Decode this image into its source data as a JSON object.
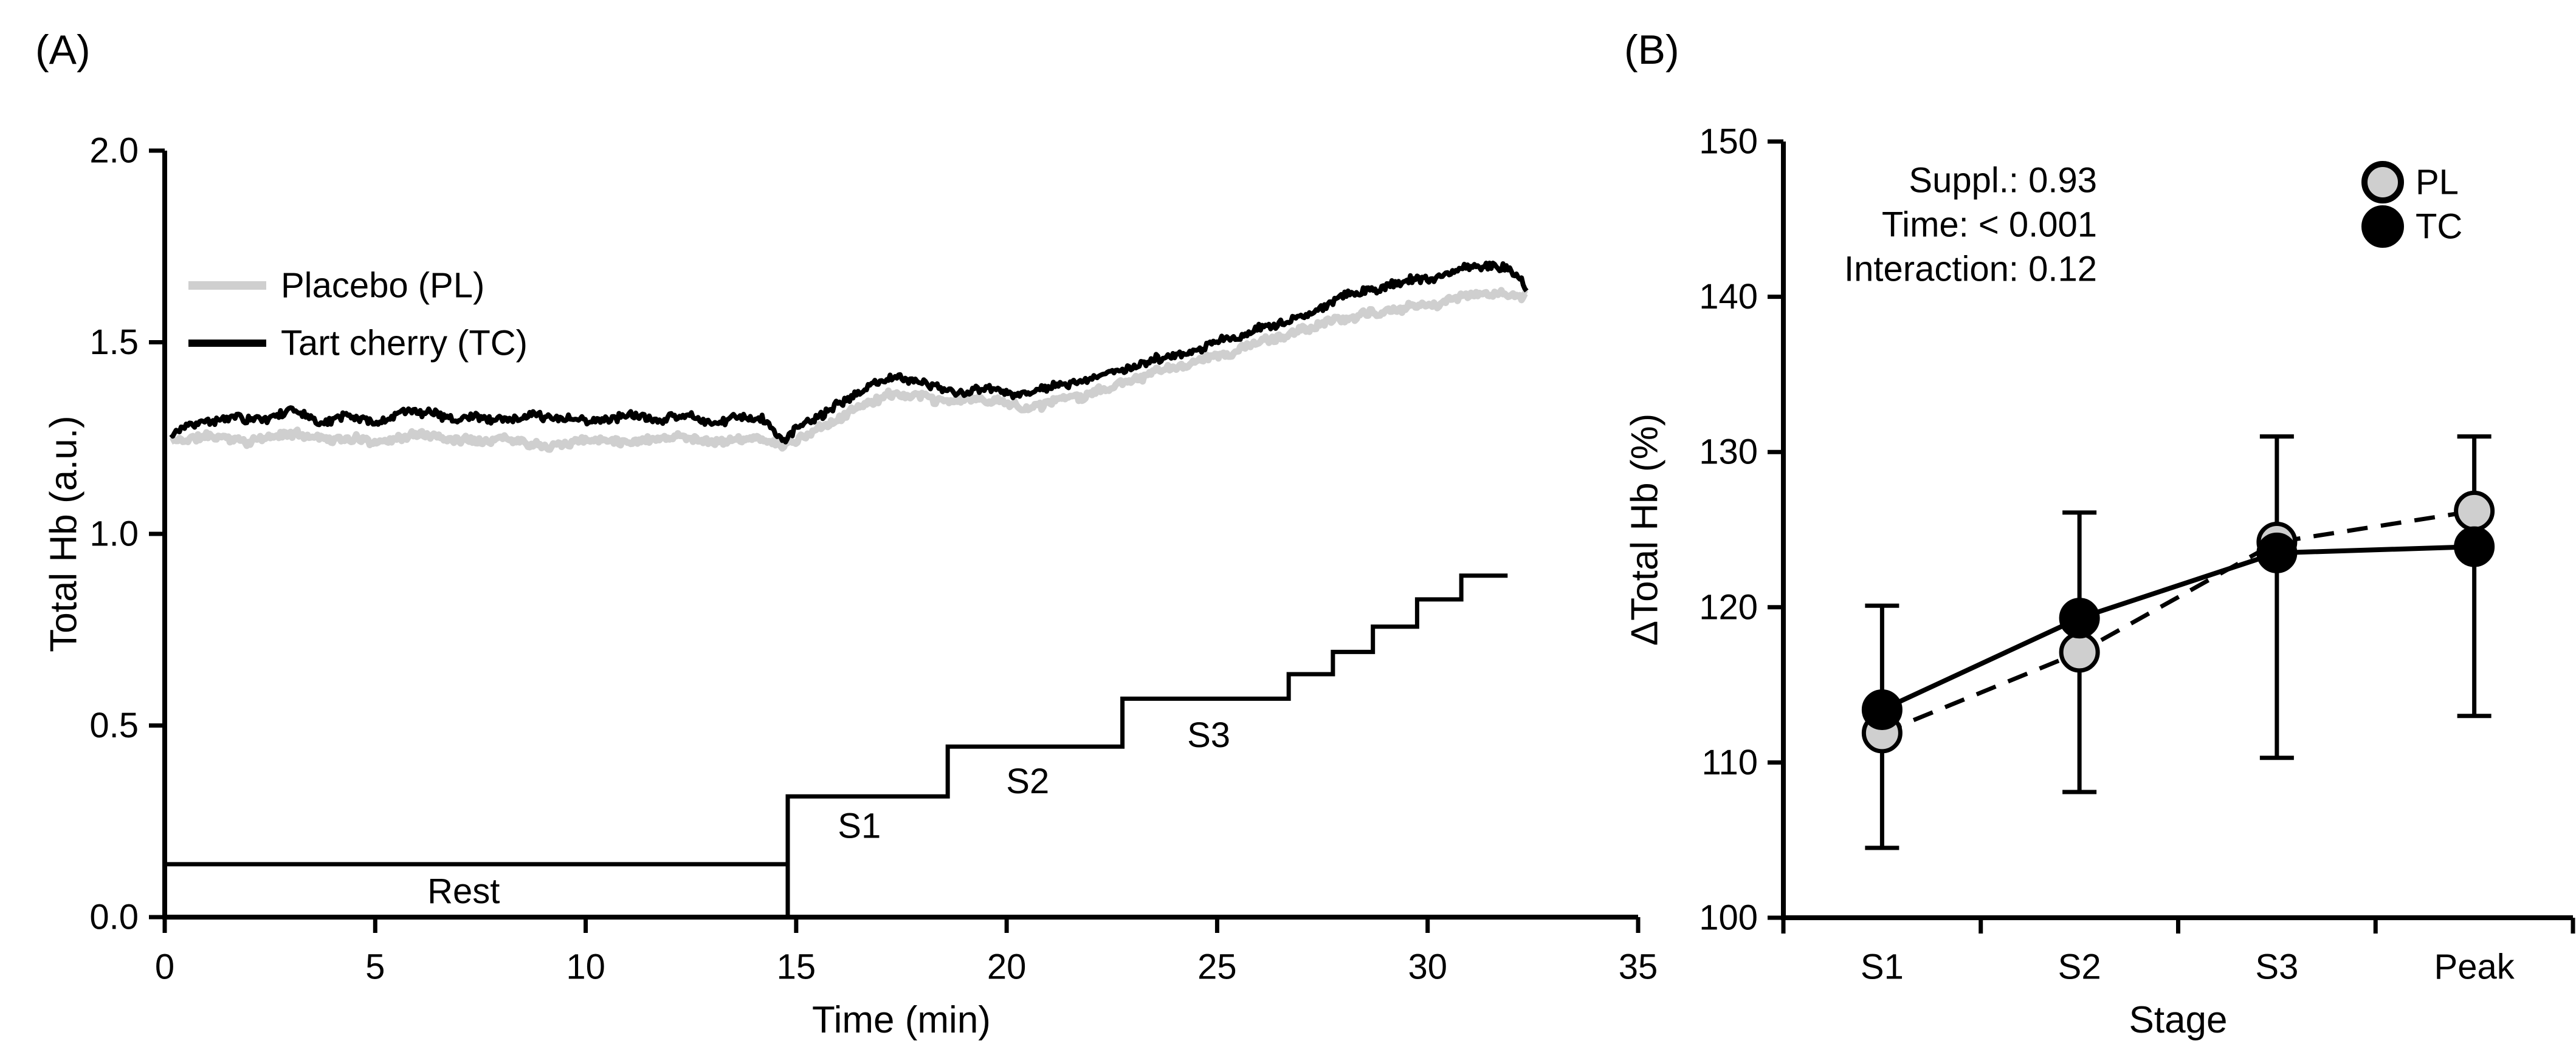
{
  "figure": {
    "background": "#ffffff",
    "panel_a": {
      "label": "(A)",
      "xlabel": "Time (min)",
      "ylabel": "Total Hb (a.u.)",
      "xlim": [
        0,
        35
      ],
      "ylim": [
        0.0,
        2.0
      ],
      "xticks": [
        {
          "v": 0,
          "label": "0"
        },
        {
          "v": 5,
          "label": "5"
        },
        {
          "v": 10,
          "label": "10"
        },
        {
          "v": 15,
          "label": "15"
        },
        {
          "v": 20,
          "label": "20"
        },
        {
          "v": 25,
          "label": "25"
        },
        {
          "v": 30,
          "label": "30"
        },
        {
          "v": 35,
          "label": "35"
        }
      ],
      "yticks": [
        {
          "v": 0.0,
          "label": "0.0"
        },
        {
          "v": 0.5,
          "label": "0.5"
        },
        {
          "v": 1.0,
          "label": "1.0"
        },
        {
          "v": 1.5,
          "label": "1.5"
        },
        {
          "v": 2.0,
          "label": "2.0"
        }
      ],
      "legend": [
        {
          "name": "Placebo (PL)",
          "color": "#cfcfcf",
          "swatch_width": 14
        },
        {
          "name": "Tart cherry (TC)",
          "color": "#000000",
          "swatch_width": 12
        }
      ],
      "chart_data": {
        "type": "line",
        "x_unit": "min",
        "series": [
          {
            "name": "Placebo (PL)",
            "color": "#cfcfcf",
            "stroke_width": 11,
            "noise_amp": 0.015,
            "noise_seed": 11,
            "waypoints": [
              [
                0.15,
                1.24
              ],
              [
                1,
                1.255
              ],
              [
                2,
                1.245
              ],
              [
                3,
                1.26
              ],
              [
                4,
                1.25
              ],
              [
                5,
                1.245
              ],
              [
                6,
                1.26
              ],
              [
                7,
                1.25
              ],
              [
                8,
                1.255
              ],
              [
                9,
                1.24
              ],
              [
                10,
                1.25
              ],
              [
                11,
                1.245
              ],
              [
                12,
                1.26
              ],
              [
                13,
                1.245
              ],
              [
                14,
                1.25
              ],
              [
                14.6,
                1.23
              ],
              [
                15.2,
                1.25
              ],
              [
                16,
                1.3
              ],
              [
                16.6,
                1.34
              ],
              [
                17.2,
                1.36
              ],
              [
                18,
                1.35
              ],
              [
                18.6,
                1.34
              ],
              [
                19.2,
                1.35
              ],
              [
                20,
                1.34
              ],
              [
                20.6,
                1.33
              ],
              [
                21.2,
                1.35
              ],
              [
                22,
                1.37
              ],
              [
                23,
                1.4
              ],
              [
                24,
                1.43
              ],
              [
                25,
                1.46
              ],
              [
                26,
                1.5
              ],
              [
                26.8,
                1.52
              ],
              [
                27.6,
                1.55
              ],
              [
                28.4,
                1.57
              ],
              [
                29.2,
                1.58
              ],
              [
                30,
                1.6
              ],
              [
                30.8,
                1.62
              ],
              [
                31.6,
                1.63
              ],
              [
                32.1,
                1.63
              ],
              [
                32.35,
                1.62
              ]
            ]
          },
          {
            "name": "Tart cherry (TC)",
            "color": "#000000",
            "stroke_width": 8,
            "noise_amp": 0.017,
            "noise_seed": 4,
            "waypoints": [
              [
                0.15,
                1.26
              ],
              [
                0.8,
                1.29
              ],
              [
                1.6,
                1.3
              ],
              [
                2.4,
                1.29
              ],
              [
                3,
                1.32
              ],
              [
                3.6,
                1.29
              ],
              [
                4.4,
                1.3
              ],
              [
                5,
                1.28
              ],
              [
                5.8,
                1.31
              ],
              [
                6.6,
                1.3
              ],
              [
                7.4,
                1.31
              ],
              [
                8,
                1.29
              ],
              [
                8.8,
                1.3
              ],
              [
                9.6,
                1.31
              ],
              [
                10.4,
                1.29
              ],
              [
                11,
                1.31
              ],
              [
                11.8,
                1.3
              ],
              [
                12.4,
                1.31
              ],
              [
                13,
                1.28
              ],
              [
                13.6,
                1.31
              ],
              [
                14.2,
                1.3
              ],
              [
                14.7,
                1.25
              ],
              [
                15.1,
                1.29
              ],
              [
                15.6,
                1.31
              ],
              [
                16.2,
                1.35
              ],
              [
                16.8,
                1.39
              ],
              [
                17.4,
                1.41
              ],
              [
                18,
                1.39
              ],
              [
                18.8,
                1.37
              ],
              [
                19.4,
                1.38
              ],
              [
                20,
                1.37
              ],
              [
                20.6,
                1.36
              ],
              [
                21.2,
                1.38
              ],
              [
                22,
                1.4
              ],
              [
                23,
                1.43
              ],
              [
                24,
                1.46
              ],
              [
                25,
                1.5
              ],
              [
                26,
                1.54
              ],
              [
                26.8,
                1.57
              ],
              [
                27.6,
                1.6
              ],
              [
                28.4,
                1.63
              ],
              [
                29.2,
                1.65
              ],
              [
                30,
                1.67
              ],
              [
                30.8,
                1.7
              ],
              [
                31.4,
                1.7
              ],
              [
                31.9,
                1.69
              ],
              [
                32.2,
                1.67
              ],
              [
                32.35,
                1.64
              ]
            ]
          }
        ],
        "protocol_steps": {
          "color": "#000000",
          "stroke_width": 7,
          "riser_t": 14.8,
          "segments": [
            {
              "t0": 0.0,
              "t1": 14.8,
              "level": 0.138
            },
            {
              "t0": 14.8,
              "t1": 18.6,
              "level": 0.315
            },
            {
              "t0": 18.6,
              "t1": 22.75,
              "level": 0.445
            },
            {
              "t0": 22.75,
              "t1": 26.7,
              "level": 0.57
            },
            {
              "t0": 26.7,
              "t1": 27.75,
              "level": 0.634
            },
            {
              "t0": 27.75,
              "t1": 28.7,
              "level": 0.692
            },
            {
              "t0": 28.7,
              "t1": 29.75,
              "level": 0.758
            },
            {
              "t0": 29.75,
              "t1": 30.8,
              "level": 0.829
            },
            {
              "t0": 30.8,
              "t1": 31.9,
              "level": 0.891
            }
          ],
          "stage_labels": [
            {
              "text": "Rest",
              "t": 7.1,
              "v": 0.067
            },
            {
              "text": "S1",
              "t": 16.5,
              "v": 0.238
            },
            {
              "text": "S2",
              "t": 20.5,
              "v": 0.354
            },
            {
              "text": "S3",
              "t": 24.8,
              "v": 0.475
            }
          ]
        }
      }
    },
    "panel_b": {
      "label": "(B)",
      "xlabel": "Stage",
      "ylabel": "ΔTotal Hb (%)",
      "ylim": [
        100,
        150
      ],
      "yticks": [
        {
          "v": 100,
          "label": "100"
        },
        {
          "v": 110,
          "label": "110"
        },
        {
          "v": 120,
          "label": "120"
        },
        {
          "v": 130,
          "label": "130"
        },
        {
          "v": 140,
          "label": "140"
        },
        {
          "v": 150,
          "label": "150"
        }
      ],
      "annotations": [
        "Suppl.: 0.93",
        "Time: < 0.001",
        "Interaction: 0.12"
      ],
      "legend": [
        {
          "name": "PL",
          "fill": "#cfcfcf",
          "edge": "#000000"
        },
        {
          "name": "TC",
          "fill": "#000000",
          "edge": "#000000"
        }
      ],
      "chart_data": {
        "type": "scatter",
        "categories": [
          "S1",
          "S2",
          "S3",
          "Peak"
        ],
        "series": [
          {
            "name": "PL",
            "values": [
              111.9,
              117.1,
              124.2,
              126.2
            ],
            "fill": "#cfcfcf",
            "edge": "#000000",
            "line_style": "dashed"
          },
          {
            "name": "TC",
            "values": [
              113.4,
              119.3,
              123.5,
              123.9
            ],
            "fill": "#000000",
            "edge": "#000000",
            "line_style": "solid"
          }
        ],
        "error_bars": {
          "top": [
            120.1,
            126.1,
            131.0,
            131.0
          ],
          "bottom": [
            104.5,
            108.1,
            110.3,
            113.0
          ]
        }
      }
    }
  }
}
